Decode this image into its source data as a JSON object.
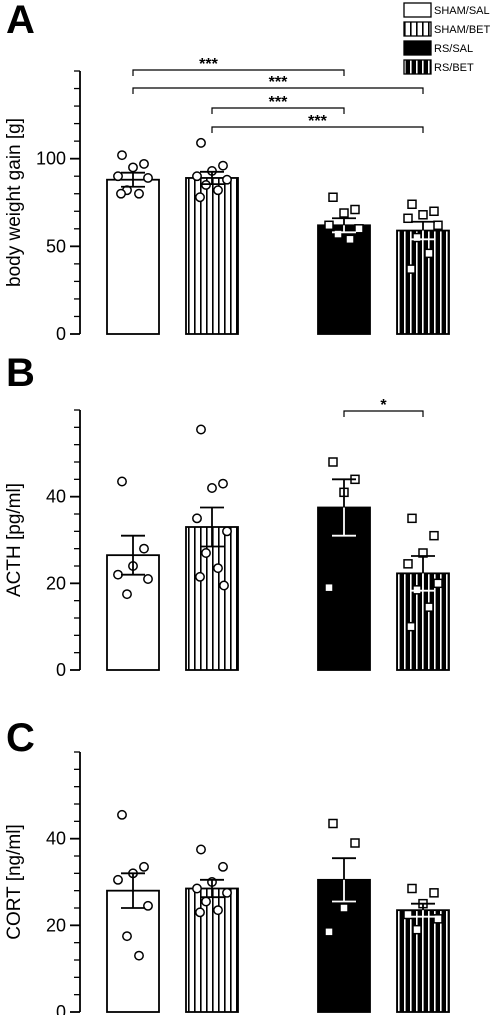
{
  "legend": [
    {
      "label": "SHAM/SAL",
      "pattern": "white"
    },
    {
      "label": "SHAM/BET",
      "pattern": "white-striped"
    },
    {
      "label": "RS/SAL",
      "pattern": "black"
    },
    {
      "label": "RS/BET",
      "pattern": "black-striped"
    }
  ],
  "colors": {
    "stroke": "#000000",
    "fill_dark": "#000000",
    "fill_light": "#ffffff"
  },
  "chart_data": [
    {
      "type": "bar",
      "panel": "A",
      "ylabel": "body weight gain [g]",
      "ylim": [
        0,
        150
      ],
      "yticks": [
        0,
        50,
        100
      ],
      "categories": [
        "SHAM/SAL",
        "SHAM/BET",
        "RS/SAL",
        "RS/BET"
      ],
      "values": [
        88,
        89,
        62,
        59
      ],
      "sem": [
        4,
        3.5,
        4,
        5
      ],
      "points": [
        [
          102,
          97,
          95,
          90,
          89,
          82,
          80,
          80
        ],
        [
          109,
          96,
          93,
          90,
          88,
          85,
          82,
          78
        ],
        [
          78,
          71,
          69,
          62,
          60,
          57,
          54
        ],
        [
          74,
          70,
          68,
          66,
          62,
          55,
          46,
          37
        ]
      ],
      "markers": [
        "circle",
        "circle",
        "square",
        "square"
      ],
      "significance": [
        {
          "from": 0,
          "to": 2,
          "label": "***"
        },
        {
          "from": 0,
          "to": 3,
          "label": "***"
        },
        {
          "from": 1,
          "to": 2,
          "label": "***"
        },
        {
          "from": 1,
          "to": 3,
          "label": "***"
        }
      ]
    },
    {
      "type": "bar",
      "panel": "B",
      "ylabel": "ACTH [pg/ml]",
      "ylim": [
        0,
        60
      ],
      "yticks": [
        0,
        20,
        40
      ],
      "categories": [
        "SHAM/SAL",
        "SHAM/BET",
        "RS/SAL",
        "RS/BET"
      ],
      "values": [
        26.5,
        33,
        37.5,
        22.3
      ],
      "sem": [
        4.5,
        4.5,
        6.5,
        4
      ],
      "points": [
        [
          43.5,
          28,
          24,
          22,
          21,
          17.5
        ],
        [
          55.5,
          43,
          42,
          35,
          32,
          27,
          23.5,
          21.5,
          19.5
        ],
        [
          48,
          44,
          41,
          19
        ],
        [
          35,
          31,
          27,
          24.5,
          20,
          18.5,
          14.5,
          10
        ]
      ],
      "markers": [
        "circle",
        "circle",
        "square",
        "square"
      ],
      "significance": [
        {
          "from": 2,
          "to": 3,
          "label": "*"
        }
      ]
    },
    {
      "type": "bar",
      "panel": "C",
      "ylabel": "CORT [ng/ml]",
      "ylim": [
        0,
        60
      ],
      "yticks": [
        0,
        20,
        40
      ],
      "categories": [
        "SHAM/SAL",
        "SHAM/BET",
        "RS/SAL",
        "RS/BET"
      ],
      "values": [
        28,
        28.5,
        30.5,
        23.5
      ],
      "sem": [
        4,
        2,
        5,
        1.5
      ],
      "points": [
        [
          45.5,
          33.5,
          32,
          30.5,
          24.5,
          17.5,
          13
        ],
        [
          37.5,
          33.5,
          30,
          28.5,
          27.5,
          25.5,
          23.5,
          23
        ],
        [
          43.5,
          39,
          24,
          18.5
        ],
        [
          28.5,
          27.5,
          25,
          22.5,
          21.5,
          19
        ]
      ],
      "markers": [
        "circle",
        "circle",
        "square",
        "square"
      ],
      "significance": []
    }
  ]
}
